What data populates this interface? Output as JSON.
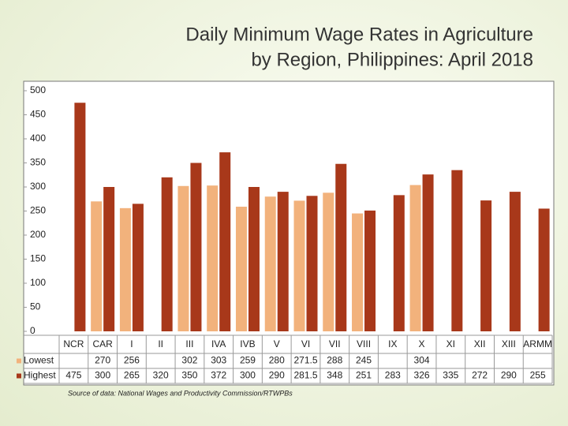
{
  "chart_data": {
    "type": "bar",
    "title": [
      "Daily Minimum Wage Rates in Agriculture",
      "by Region, Philippines: April 2018"
    ],
    "categories": [
      "NCR",
      "CAR",
      "I",
      "II",
      "III",
      "IVA",
      "IVB",
      "V",
      "VI",
      "VII",
      "VIII",
      "IX",
      "X",
      "XI",
      "XII",
      "XIII",
      "ARMM"
    ],
    "series": [
      {
        "name": "Lowest",
        "color": "#f2b27c",
        "values": [
          null,
          270,
          256,
          null,
          302,
          303,
          259,
          280,
          271.5,
          288,
          245,
          null,
          304,
          null,
          null,
          null,
          null
        ]
      },
      {
        "name": "Highest",
        "color": "#a8381a",
        "values": [
          475,
          300,
          265,
          320,
          350,
          372,
          300,
          290,
          281.5,
          348,
          251,
          283,
          326,
          335,
          272,
          290,
          255
        ]
      }
    ],
    "ylim": [
      0,
      500
    ],
    "yticks": [
      0,
      50,
      100,
      150,
      200,
      250,
      300,
      350,
      400,
      450,
      500
    ],
    "source": "Source of data: National Wages and Productivity Commission/RTWPBs"
  }
}
